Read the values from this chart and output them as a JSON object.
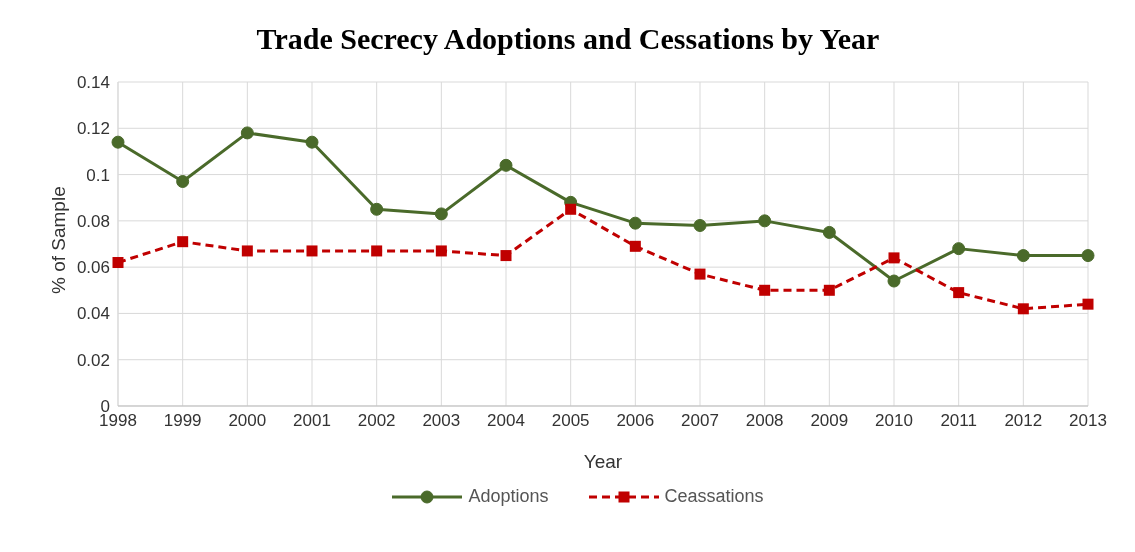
{
  "chart_data": {
    "type": "line",
    "title": "Trade Secrecy Adoptions and Cessations by Year",
    "xlabel": "Year",
    "ylabel": "% of Sample",
    "categories": [
      "1998",
      "1999",
      "2000",
      "2001",
      "2002",
      "2003",
      "2004",
      "2005",
      "2006",
      "2007",
      "2008",
      "2009",
      "2010",
      "2011",
      "2012",
      "2013"
    ],
    "series": [
      {
        "name": "Adoptions",
        "color": "#4a6a2a",
        "marker": "circle",
        "line_style": "solid",
        "values": [
          0.114,
          0.097,
          0.118,
          0.114,
          0.085,
          0.083,
          0.104,
          0.088,
          0.079,
          0.078,
          0.08,
          0.075,
          0.054,
          0.068,
          0.065,
          0.065
        ]
      },
      {
        "name": "Ceassations",
        "color": "#c00000",
        "marker": "square",
        "line_style": "dashed",
        "values": [
          0.062,
          0.071,
          0.067,
          0.067,
          0.067,
          0.067,
          0.065,
          0.085,
          0.069,
          0.057,
          0.05,
          0.05,
          0.064,
          0.049,
          0.042,
          0.044
        ]
      }
    ],
    "ylim": [
      0,
      0.14
    ],
    "yticks": [
      0,
      0.02,
      0.04,
      0.06,
      0.08,
      0.1,
      0.12,
      0.14
    ],
    "grid": true,
    "legend": "bottom"
  }
}
